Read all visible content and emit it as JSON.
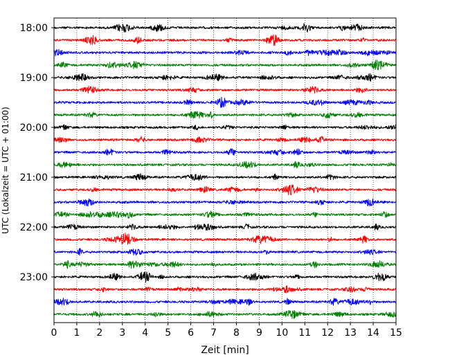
{
  "chart_data": {
    "type": "line",
    "title": "",
    "xlabel": "Zeit  [min]",
    "ylabel": "UTC (Lokalzeit = UTC + 01:00)",
    "xlim": [
      0,
      15
    ],
    "x_ticks": [
      "0",
      "1",
      "2",
      "3",
      "4",
      "5",
      "6",
      "7",
      "8",
      "9",
      "10",
      "11",
      "12",
      "13",
      "14",
      "15"
    ],
    "y_ticks": [
      "18:00",
      "19:00",
      "20:00",
      "21:00",
      "22:00",
      "23:00"
    ],
    "grid": "vertical dotted at each minute",
    "series_colors": [
      "#000000",
      "#ff0000",
      "#0000ff",
      "#008000"
    ],
    "traces": [
      {
        "start": "18:00",
        "color": "#000000"
      },
      {
        "start": "18:15",
        "color": "#ff0000"
      },
      {
        "start": "18:30",
        "color": "#0000ff"
      },
      {
        "start": "18:45",
        "color": "#008000"
      },
      {
        "start": "19:00",
        "color": "#000000"
      },
      {
        "start": "19:15",
        "color": "#ff0000"
      },
      {
        "start": "19:30",
        "color": "#0000ff"
      },
      {
        "start": "19:45",
        "color": "#008000"
      },
      {
        "start": "20:00",
        "color": "#000000"
      },
      {
        "start": "20:15",
        "color": "#ff0000"
      },
      {
        "start": "20:30",
        "color": "#0000ff"
      },
      {
        "start": "20:45",
        "color": "#008000"
      },
      {
        "start": "21:00",
        "color": "#000000"
      },
      {
        "start": "21:15",
        "color": "#ff0000"
      },
      {
        "start": "21:30",
        "color": "#0000ff"
      },
      {
        "start": "21:45",
        "color": "#008000"
      },
      {
        "start": "22:00",
        "color": "#000000"
      },
      {
        "start": "22:15",
        "color": "#ff0000"
      },
      {
        "start": "22:30",
        "color": "#0000ff"
      },
      {
        "start": "22:45",
        "color": "#008000"
      },
      {
        "start": "23:00",
        "color": "#000000"
      },
      {
        "start": "23:15",
        "color": "#ff0000"
      },
      {
        "start": "23:30",
        "color": "#0000ff"
      },
      {
        "start": "23:45",
        "color": "#008000"
      }
    ]
  }
}
